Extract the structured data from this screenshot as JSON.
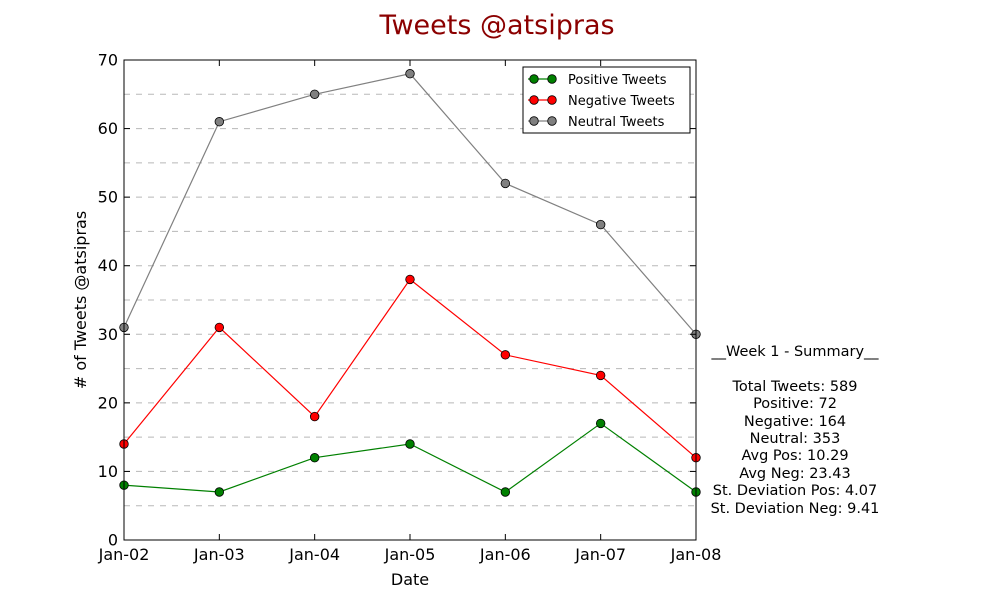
{
  "chart_data": {
    "type": "line",
    "title": "Tweets @atsipras",
    "title_color": "#8b0000",
    "xlabel": "Date",
    "ylabel": "# of Tweets @atsipras",
    "ylim": [
      0,
      70
    ],
    "yticks": [
      "0",
      "10",
      "20",
      "30",
      "40",
      "50",
      "60",
      "70"
    ],
    "categories": [
      "Jan-02",
      "Jan-03",
      "Jan-04",
      "Jan-05",
      "Jan-06",
      "Jan-07",
      "Jan-08"
    ],
    "grid": "horizontal dashed, every 5",
    "legend_position": "top-right",
    "series": [
      {
        "name": "Positive Tweets",
        "color": "#008000",
        "values": [
          8,
          7,
          12,
          14,
          7,
          17,
          7
        ]
      },
      {
        "name": "Negative Tweets",
        "color": "#ff0000",
        "values": [
          14,
          31,
          18,
          38,
          27,
          24,
          12
        ]
      },
      {
        "name": "Neutral Tweets",
        "color": "#808080",
        "values": [
          31,
          61,
          65,
          68,
          52,
          46,
          30
        ]
      }
    ]
  },
  "summary": {
    "heading": "__Week 1 - Summary__",
    "lines": [
      "Total Tweets: 589",
      "Positive: 72",
      "Negative: 164",
      "Neutral: 353",
      "Avg Pos: 10.29",
      "Avg Neg: 23.43",
      "St. Deviation Pos: 4.07",
      "St. Deviation Neg: 9.41"
    ]
  }
}
